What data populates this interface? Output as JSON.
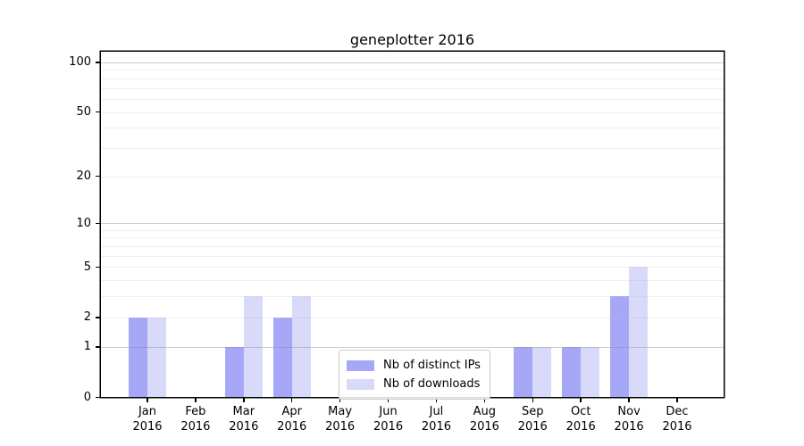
{
  "chart_data": {
    "type": "bar",
    "title": "geneplotter 2016",
    "categories": [
      "Jan",
      "Feb",
      "Mar",
      "Apr",
      "May",
      "Jun",
      "Jul",
      "Aug",
      "Sep",
      "Oct",
      "Nov",
      "Dec"
    ],
    "year_label": "2016",
    "series": [
      {
        "name": "Nb of distinct IPs",
        "color": "#a7a7f8",
        "values": [
          2,
          0,
          1,
          2,
          0,
          0,
          0,
          0,
          1,
          1,
          3,
          0
        ]
      },
      {
        "name": "Nb of downloads",
        "color": "#d9d9fa",
        "values": [
          2,
          0,
          3,
          3,
          0,
          0,
          0,
          0,
          1,
          1,
          5,
          0
        ]
      }
    ],
    "xlabel": "",
    "ylabel": "",
    "yscale": "log10(value+1)",
    "ylim": [
      0,
      116
    ],
    "yticks": [
      0,
      1,
      2,
      5,
      10,
      20,
      50,
      100
    ],
    "gridlines": {
      "on": true,
      "major": [
        1,
        10,
        100
      ],
      "minor": [
        2,
        3,
        4,
        5,
        6,
        7,
        8,
        9,
        20,
        30,
        40,
        50,
        60,
        70,
        80,
        90
      ]
    },
    "legend_position": "lower center",
    "colors": {
      "background": "#ffffff",
      "spine": "#000000",
      "grid_major": "#c9c9c9",
      "grid_minor": "#ededed"
    }
  }
}
